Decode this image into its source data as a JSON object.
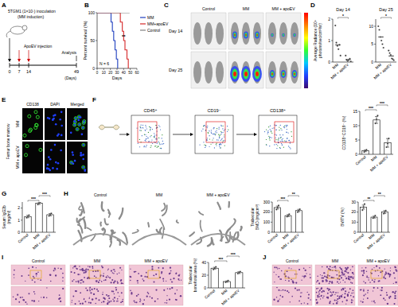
{
  "figure": {
    "panel_labels": [
      "A",
      "B",
      "C",
      "D",
      "E",
      "F",
      "G",
      "H",
      "I",
      "J"
    ],
    "a": {
      "cells": "5TGM1 (1×10⁷) inoculation",
      "induction": "(MM induction)",
      "injection": "ApoEV injection",
      "analysis": "Analysis",
      "days": [
        0,
        7,
        14,
        49
      ],
      "unit": "(Days)"
    },
    "c": {
      "groups": [
        "Control",
        "MM",
        "MM + apoEV"
      ],
      "days": [
        "Day 14",
        "Day 25"
      ]
    },
    "e": {
      "channels": [
        "CD138",
        "DAPI",
        "Merged"
      ],
      "groups": [
        "MM",
        "MM + apoEV"
      ],
      "tissue": "Femur bone marrow"
    },
    "f": {
      "gates": [
        "CD45⁺",
        "CD19⁻",
        "CD138⁺"
      ]
    },
    "h": {
      "groups": [
        "Control",
        "MM",
        "MM + apoEV"
      ]
    },
    "i": {
      "groups": [
        "Control",
        "MM",
        "MM + apoEV"
      ]
    },
    "j": {
      "groups": [
        "Control",
        "MM",
        "MM + apoEV"
      ]
    }
  },
  "chart_data": [
    {
      "type": "line",
      "xlabel": "Days",
      "ylabel": "Percent survival (%)",
      "xlim": [
        0,
        60
      ],
      "xticks": [
        0,
        10,
        20,
        30,
        40,
        50,
        60
      ],
      "ylim": [
        0,
        100
      ],
      "yticks": [
        0,
        50,
        100
      ],
      "legend": "top-right",
      "annotations": [
        "N = 6",
        "**"
      ],
      "series": [
        {
          "name": "MM",
          "color": "#1f3fbf",
          "x": [
            0,
            21,
            21,
            23,
            23,
            25,
            25,
            27,
            27,
            29,
            29,
            31,
            31
          ],
          "values": [
            100,
            100,
            83.3,
            83.3,
            66.7,
            66.7,
            50,
            50,
            33.3,
            33.3,
            16.7,
            16.7,
            0
          ]
        },
        {
          "name": "MM+apoEV",
          "color": "#d62728",
          "x": [
            0,
            35,
            35,
            38,
            38,
            40,
            40,
            42,
            42,
            45,
            45,
            47,
            47
          ],
          "values": [
            100,
            100,
            83.3,
            83.3,
            66.7,
            66.7,
            50,
            50,
            33.3,
            33.3,
            16.7,
            16.7,
            0
          ]
        },
        {
          "name": "Control",
          "color": "#7f7f7f",
          "x": [
            0,
            49
          ],
          "values": [
            100,
            100
          ]
        }
      ]
    },
    {
      "type": "strip",
      "title": "Day 14",
      "ylabel": "Average Radiance (10⁶ photons/sec/cm²/sr)",
      "categories": [
        "MM",
        "MM + apoEV"
      ],
      "values": [
        0.8,
        0.12
      ],
      "points": [
        [
          1.7,
          0.9,
          0.75,
          0.6,
          0.8,
          0.3
        ],
        [
          0.3,
          0.1,
          0.05,
          0.1,
          0.15,
          0.02
        ]
      ],
      "ylim": [
        0,
        2
      ],
      "yticks": [
        0,
        1,
        2
      ],
      "color": "#000000",
      "annotations": [
        "*"
      ]
    },
    {
      "type": "strip",
      "title": "Day 25",
      "categories": [
        "MM",
        "MM + apoEV"
      ],
      "values": [
        7,
        1.7
      ],
      "points": [
        [
          10,
          9,
          7,
          6,
          5,
          4
        ],
        [
          3.2,
          2.5,
          2,
          1,
          0.8,
          0.5
        ]
      ],
      "ylim": [
        0,
        12
      ],
      "yticks": [
        0,
        5,
        10
      ],
      "color": "#000000",
      "annotations": [
        "*"
      ]
    },
    {
      "type": "bar",
      "ylabel": "CD138⁺CD19⁻ (%)",
      "categories": [
        "Control",
        "MM",
        "MM + apoEV"
      ],
      "values": [
        1.2,
        12,
        4
      ],
      "errors": [
        0.3,
        1.2,
        1.5
      ],
      "points": [
        [
          0.8,
          1.2,
          1.6
        ],
        [
          10.8,
          12.2,
          13.5
        ],
        [
          2.5,
          3.8,
          5.5
        ]
      ],
      "ylim": [
        0,
        15
      ],
      "yticks": [
        0,
        5,
        10,
        15
      ],
      "color": "#ffffff",
      "annotations": [
        "***",
        "***"
      ]
    },
    {
      "type": "bar",
      "ylabel": "Serum IgG2b (mg/ml)",
      "categories": [
        "Control",
        "MM",
        "MM + apoEV"
      ],
      "values": [
        1.3,
        2.4,
        1.45
      ],
      "errors": [
        0.1,
        0.1,
        0.1
      ],
      "points": [
        [
          1.2,
          1.3,
          1.4
        ],
        [
          2.3,
          2.4,
          2.5
        ],
        [
          1.35,
          1.45,
          1.55
        ]
      ],
      "ylim": [
        0,
        2.5
      ],
      "yticks": [
        0,
        1,
        2
      ],
      "color": "#ffffff",
      "annotations": [
        "***",
        "***"
      ]
    },
    {
      "type": "bar",
      "ylabel": "Trabecular BMD (mg/cm³)",
      "categories": [
        "Control",
        "MM",
        "MM + apoEV"
      ],
      "values": [
        245,
        165,
        215
      ],
      "errors": [
        15,
        10,
        12
      ],
      "points": [
        [
          225,
          245,
          265
        ],
        [
          155,
          165,
          178
        ],
        [
          200,
          215,
          228
        ]
      ],
      "ylim": [
        0,
        300
      ],
      "yticks": [
        0,
        100,
        200,
        300
      ],
      "color": "#ffffff",
      "annotations": [
        "***",
        "**"
      ]
    },
    {
      "type": "bar",
      "ylabel": "BV/TV (%)",
      "categories": [
        "Control",
        "MM",
        "MM + apoEV"
      ],
      "values": [
        25,
        15,
        20
      ],
      "errors": [
        2,
        1,
        1.5
      ],
      "points": [
        [
          22,
          25,
          28
        ],
        [
          14,
          15,
          16.5
        ],
        [
          18.5,
          20,
          21.5
        ]
      ],
      "ylim": [
        0,
        30
      ],
      "yticks": [
        0,
        10,
        20,
        30
      ],
      "color": "#ffffff",
      "annotations": [
        "**",
        "**"
      ]
    },
    {
      "type": "bar",
      "ylabel": "Trabecular bone/total area (%)",
      "categories": [
        "Control",
        "MM",
        "MM + apoEV"
      ],
      "values": [
        31,
        10,
        24
      ],
      "errors": [
        1.5,
        1,
        1.5
      ],
      "points": [
        [
          29,
          31,
          33
        ],
        [
          9,
          10,
          11.5
        ],
        [
          22.5,
          24,
          25.5
        ]
      ],
      "ylim": [
        0,
        40
      ],
      "yticks": [
        0,
        20,
        40
      ],
      "color": "#ffffff",
      "annotations": [
        "***",
        "***"
      ]
    }
  ]
}
